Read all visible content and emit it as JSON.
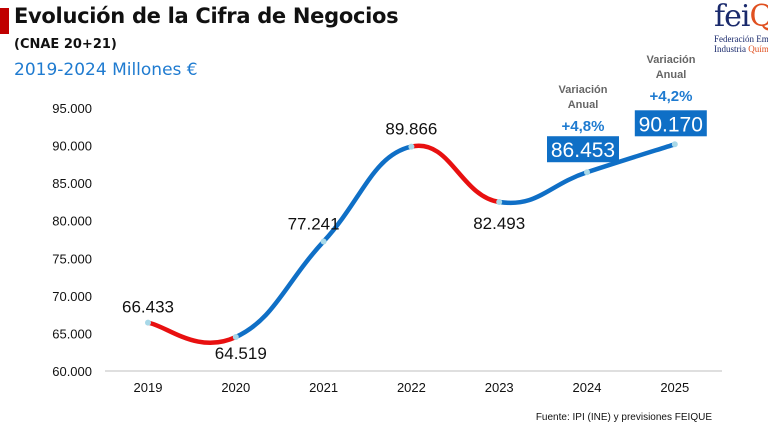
{
  "header": {
    "title": "Evolución de la Cifra de Negocios",
    "subtitle": "(CNAE 20+21)",
    "subtitle2": "2019-2024 Millones €"
  },
  "logo": {
    "text": "feiQ",
    "line1": "Federación Emp",
    "line2a": "Industria ",
    "line2b": "Quím"
  },
  "source": "Fuente: IPI (INE) y previsiones FEIQUE",
  "colors": {
    "increase": "#0f6fc6",
    "decrease": "#e81010",
    "label_box": "#0f6fc6",
    "annotation": "#1f7bd0"
  },
  "chart_data": {
    "type": "line",
    "categories": [
      "2019",
      "2020",
      "2021",
      "2022",
      "2023",
      "2024",
      "2025"
    ],
    "values": [
      66433,
      64519,
      77241,
      89866,
      82493,
      86453,
      90170
    ],
    "data_labels": [
      "66.433",
      "64.519",
      "77.241",
      "89.866",
      "82.493",
      "86.453",
      "90.170"
    ],
    "ylim": [
      60000,
      95000
    ],
    "yticks": [
      "60.000",
      "65.000",
      "70.000",
      "75.000",
      "80.000",
      "85.000",
      "90.000",
      "95.000"
    ],
    "grid": false,
    "annotations": [
      {
        "category": "2024",
        "line1": "Variación",
        "line2": "Anual",
        "value": "+4,8%"
      },
      {
        "category": "2025",
        "line1": "Variación",
        "line2": "Anual",
        "value": "+4,2%"
      }
    ]
  }
}
